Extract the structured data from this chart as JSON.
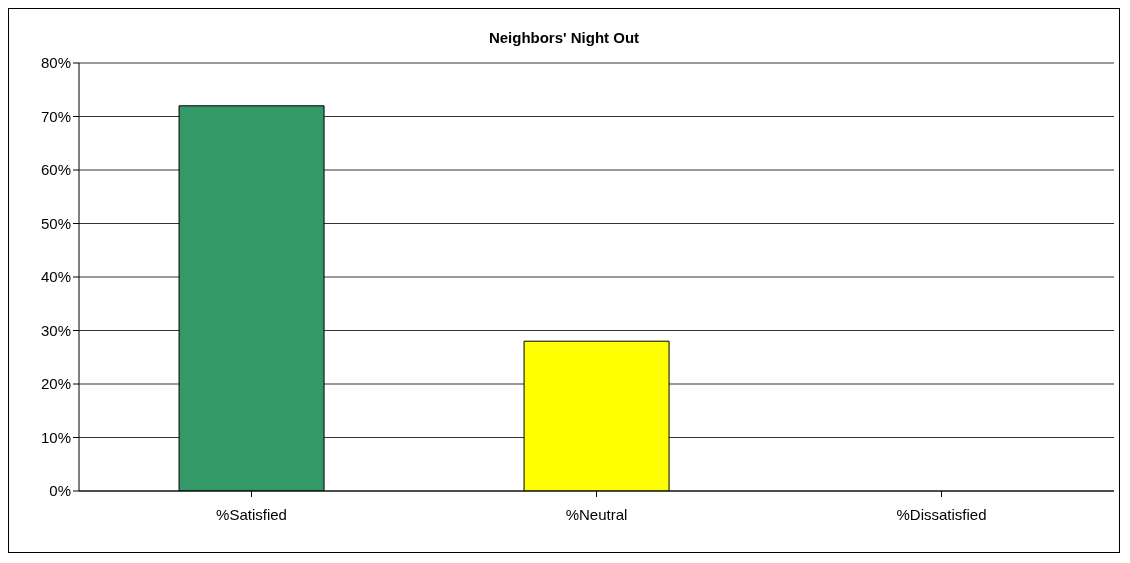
{
  "chart_data": {
    "type": "bar",
    "title": "Neighbors' Night Out",
    "categories": [
      "%Satisfied",
      "%Neutral",
      "%Dissatisfied"
    ],
    "values": [
      72,
      28,
      0
    ],
    "colors": [
      "#339966",
      "#ffff00",
      "#339966"
    ],
    "ylim": [
      0,
      80
    ],
    "yticks": [
      {
        "value": 0,
        "label": "0%"
      },
      {
        "value": 10,
        "label": "10%"
      },
      {
        "value": 20,
        "label": "20%"
      },
      {
        "value": 30,
        "label": "30%"
      },
      {
        "value": 40,
        "label": "40%"
      },
      {
        "value": 50,
        "label": "50%"
      },
      {
        "value": 60,
        "label": "60%"
      },
      {
        "value": 70,
        "label": "70%"
      },
      {
        "value": 80,
        "label": "80%"
      }
    ],
    "grid": "y"
  }
}
